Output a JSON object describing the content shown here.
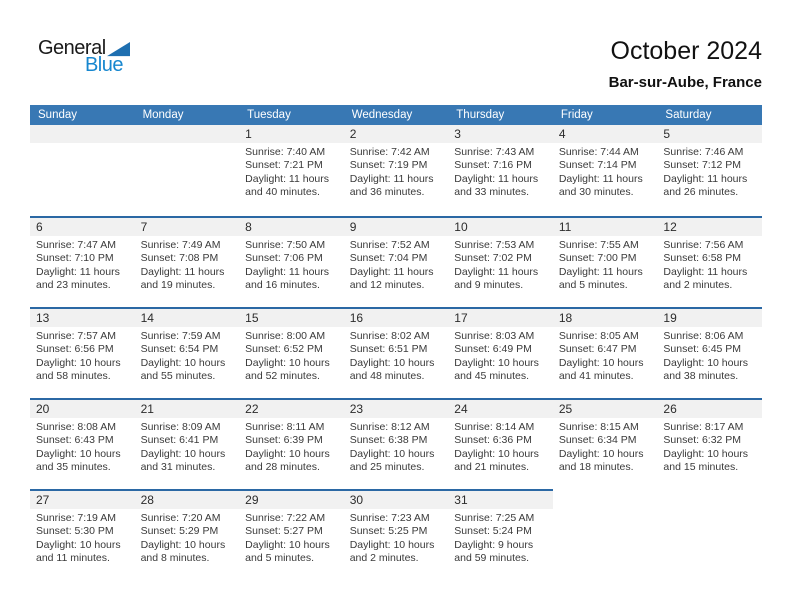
{
  "logo": {
    "general": "General",
    "blue": "Blue"
  },
  "header": {
    "title": "October 2024",
    "subtitle": "Bar-sur-Aube, France"
  },
  "weekdays": [
    "Sunday",
    "Monday",
    "Tuesday",
    "Wednesday",
    "Thursday",
    "Friday",
    "Saturday"
  ],
  "colors": {
    "header_blue": "#3878b4",
    "separator_blue": "#2b68a4",
    "band_gray": "#f1f1f1",
    "logo_blue": "#1787cf",
    "triangle_blue": "#1e6fb0"
  },
  "weeks": [
    {
      "days": [
        null,
        null,
        {
          "num": "1",
          "sunrise": "Sunrise: 7:40 AM",
          "sunset": "Sunset: 7:21 PM",
          "daylight": "Daylight: 11 hours and 40 minutes."
        },
        {
          "num": "2",
          "sunrise": "Sunrise: 7:42 AM",
          "sunset": "Sunset: 7:19 PM",
          "daylight": "Daylight: 11 hours and 36 minutes."
        },
        {
          "num": "3",
          "sunrise": "Sunrise: 7:43 AM",
          "sunset": "Sunset: 7:16 PM",
          "daylight": "Daylight: 11 hours and 33 minutes."
        },
        {
          "num": "4",
          "sunrise": "Sunrise: 7:44 AM",
          "sunset": "Sunset: 7:14 PM",
          "daylight": "Daylight: 11 hours and 30 minutes."
        },
        {
          "num": "5",
          "sunrise": "Sunrise: 7:46 AM",
          "sunset": "Sunset: 7:12 PM",
          "daylight": "Daylight: 11 hours and 26 minutes."
        }
      ]
    },
    {
      "days": [
        {
          "num": "6",
          "sunrise": "Sunrise: 7:47 AM",
          "sunset": "Sunset: 7:10 PM",
          "daylight": "Daylight: 11 hours and 23 minutes."
        },
        {
          "num": "7",
          "sunrise": "Sunrise: 7:49 AM",
          "sunset": "Sunset: 7:08 PM",
          "daylight": "Daylight: 11 hours and 19 minutes."
        },
        {
          "num": "8",
          "sunrise": "Sunrise: 7:50 AM",
          "sunset": "Sunset: 7:06 PM",
          "daylight": "Daylight: 11 hours and 16 minutes."
        },
        {
          "num": "9",
          "sunrise": "Sunrise: 7:52 AM",
          "sunset": "Sunset: 7:04 PM",
          "daylight": "Daylight: 11 hours and 12 minutes."
        },
        {
          "num": "10",
          "sunrise": "Sunrise: 7:53 AM",
          "sunset": "Sunset: 7:02 PM",
          "daylight": "Daylight: 11 hours and 9 minutes."
        },
        {
          "num": "11",
          "sunrise": "Sunrise: 7:55 AM",
          "sunset": "Sunset: 7:00 PM",
          "daylight": "Daylight: 11 hours and 5 minutes."
        },
        {
          "num": "12",
          "sunrise": "Sunrise: 7:56 AM",
          "sunset": "Sunset: 6:58 PM",
          "daylight": "Daylight: 11 hours and 2 minutes."
        }
      ]
    },
    {
      "days": [
        {
          "num": "13",
          "sunrise": "Sunrise: 7:57 AM",
          "sunset": "Sunset: 6:56 PM",
          "daylight": "Daylight: 10 hours and 58 minutes."
        },
        {
          "num": "14",
          "sunrise": "Sunrise: 7:59 AM",
          "sunset": "Sunset: 6:54 PM",
          "daylight": "Daylight: 10 hours and 55 minutes."
        },
        {
          "num": "15",
          "sunrise": "Sunrise: 8:00 AM",
          "sunset": "Sunset: 6:52 PM",
          "daylight": "Daylight: 10 hours and 52 minutes."
        },
        {
          "num": "16",
          "sunrise": "Sunrise: 8:02 AM",
          "sunset": "Sunset: 6:51 PM",
          "daylight": "Daylight: 10 hours and 48 minutes."
        },
        {
          "num": "17",
          "sunrise": "Sunrise: 8:03 AM",
          "sunset": "Sunset: 6:49 PM",
          "daylight": "Daylight: 10 hours and 45 minutes."
        },
        {
          "num": "18",
          "sunrise": "Sunrise: 8:05 AM",
          "sunset": "Sunset: 6:47 PM",
          "daylight": "Daylight: 10 hours and 41 minutes."
        },
        {
          "num": "19",
          "sunrise": "Sunrise: 8:06 AM",
          "sunset": "Sunset: 6:45 PM",
          "daylight": "Daylight: 10 hours and 38 minutes."
        }
      ]
    },
    {
      "days": [
        {
          "num": "20",
          "sunrise": "Sunrise: 8:08 AM",
          "sunset": "Sunset: 6:43 PM",
          "daylight": "Daylight: 10 hours and 35 minutes."
        },
        {
          "num": "21",
          "sunrise": "Sunrise: 8:09 AM",
          "sunset": "Sunset: 6:41 PM",
          "daylight": "Daylight: 10 hours and 31 minutes."
        },
        {
          "num": "22",
          "sunrise": "Sunrise: 8:11 AM",
          "sunset": "Sunset: 6:39 PM",
          "daylight": "Daylight: 10 hours and 28 minutes."
        },
        {
          "num": "23",
          "sunrise": "Sunrise: 8:12 AM",
          "sunset": "Sunset: 6:38 PM",
          "daylight": "Daylight: 10 hours and 25 minutes."
        },
        {
          "num": "24",
          "sunrise": "Sunrise: 8:14 AM",
          "sunset": "Sunset: 6:36 PM",
          "daylight": "Daylight: 10 hours and 21 minutes."
        },
        {
          "num": "25",
          "sunrise": "Sunrise: 8:15 AM",
          "sunset": "Sunset: 6:34 PM",
          "daylight": "Daylight: 10 hours and 18 minutes."
        },
        {
          "num": "26",
          "sunrise": "Sunrise: 8:17 AM",
          "sunset": "Sunset: 6:32 PM",
          "daylight": "Daylight: 10 hours and 15 minutes."
        }
      ]
    },
    {
      "days": [
        {
          "num": "27",
          "sunrise": "Sunrise: 7:19 AM",
          "sunset": "Sunset: 5:30 PM",
          "daylight": "Daylight: 10 hours and 11 minutes."
        },
        {
          "num": "28",
          "sunrise": "Sunrise: 7:20 AM",
          "sunset": "Sunset: 5:29 PM",
          "daylight": "Daylight: 10 hours and 8 minutes."
        },
        {
          "num": "29",
          "sunrise": "Sunrise: 7:22 AM",
          "sunset": "Sunset: 5:27 PM",
          "daylight": "Daylight: 10 hours and 5 minutes."
        },
        {
          "num": "30",
          "sunrise": "Sunrise: 7:23 AM",
          "sunset": "Sunset: 5:25 PM",
          "daylight": "Daylight: 10 hours and 2 minutes."
        },
        {
          "num": "31",
          "sunrise": "Sunrise: 7:25 AM",
          "sunset": "Sunset: 5:24 PM",
          "daylight": "Daylight: 9 hours and 59 minutes."
        },
        null,
        null
      ]
    }
  ]
}
